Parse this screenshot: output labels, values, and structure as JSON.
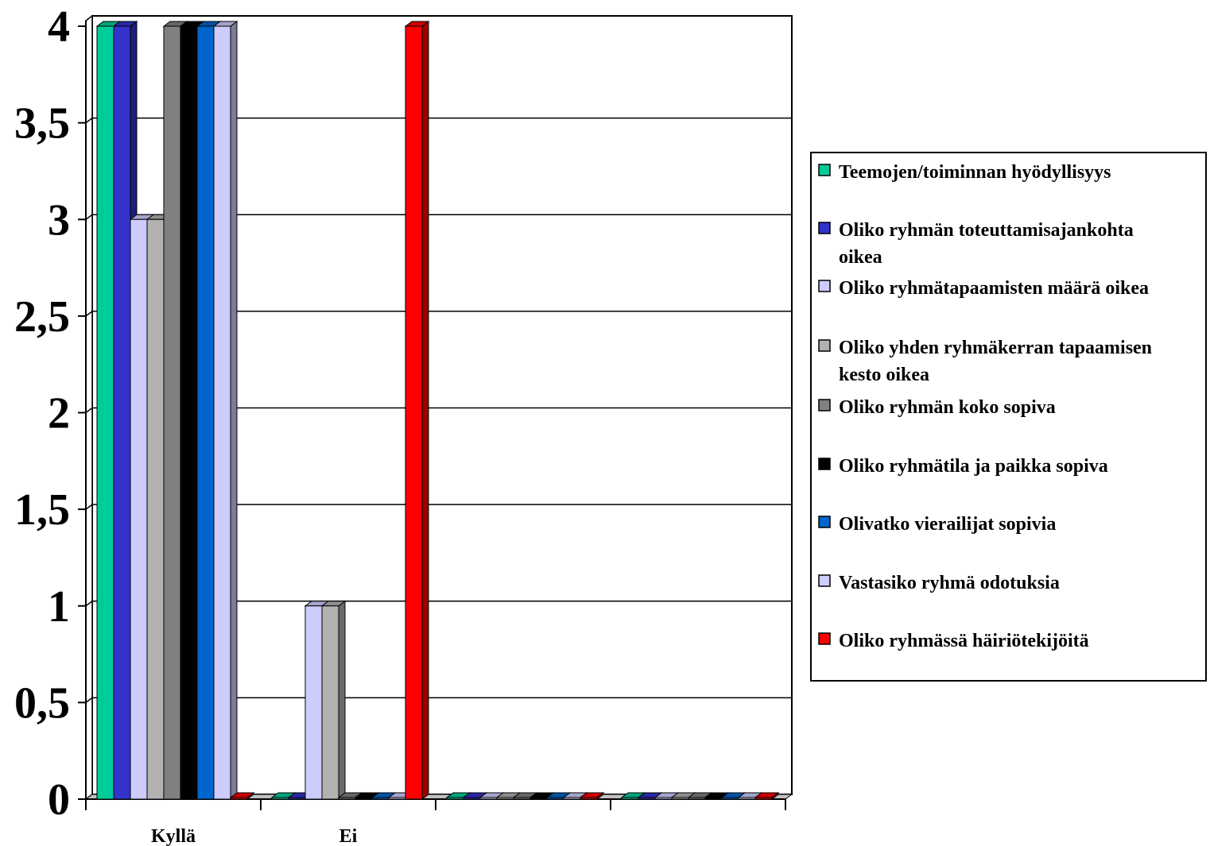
{
  "chart_data": {
    "type": "bar",
    "bar_style": "3d-clustered-column",
    "categories": [
      "Kyllä",
      "Ei",
      "",
      ""
    ],
    "ylim": [
      0,
      4
    ],
    "yticks": [
      "0",
      "0,5",
      "1",
      "1,5",
      "2",
      "2,5",
      "3",
      "3,5",
      "4"
    ],
    "grid": true,
    "legend_position": "right",
    "xlabel": "",
    "ylabel": "",
    "title": "",
    "series": [
      {
        "name": "Teemojen/toiminnan hyödyllisyys",
        "color": "#00cc99",
        "values": [
          4,
          0,
          0,
          0
        ]
      },
      {
        "name": "Oliko ryhmän toteuttamisajankohta oikea",
        "color": "#3333cc",
        "values": [
          4,
          0,
          0,
          0
        ]
      },
      {
        "name": "Oliko ryhmätapaamisten määrä oikea",
        "color": "#ccccff",
        "values": [
          3,
          1,
          0,
          0
        ]
      },
      {
        "name": "Oliko yhden ryhmäkerran tapaamisen kesto oikea",
        "color": "#b2b2b2",
        "values": [
          3,
          1,
          0,
          0
        ]
      },
      {
        "name": "Oliko ryhmän koko sopiva",
        "color": "#808080",
        "values": [
          4,
          0,
          0,
          0
        ]
      },
      {
        "name": "Oliko ryhmätila ja paikka sopiva",
        "color": "#000000",
        "values": [
          4,
          0,
          0,
          0
        ]
      },
      {
        "name": "Olivatko vierailijat sopivia",
        "color": "#0066cc",
        "values": [
          4,
          0,
          0,
          0
        ]
      },
      {
        "name": "Vastasiko ryhmä odotuksia",
        "color": "#ccccff",
        "values": [
          4,
          0,
          0,
          0
        ]
      },
      {
        "name": "Oliko ryhmässä häiriötekijöitä",
        "color": "#ff0000",
        "values": [
          0,
          4,
          0,
          0
        ]
      }
    ],
    "legend_lines": [
      [
        "Teemojen/toiminnan hyödyllisyys"
      ],
      [
        "Oliko ryhmän toteuttamisajankohta",
        "oikea"
      ],
      [
        "Oliko ryhmätapaamisten määrä oikea"
      ],
      [
        "Oliko yhden ryhmäkerran tapaamisen",
        "kesto oikea"
      ],
      [
        "Oliko ryhmän koko sopiva"
      ],
      [
        "Oliko ryhmätila ja paikka sopiva"
      ],
      [
        "Olivatko vierailijat sopivia"
      ],
      [
        "Vastasiko ryhmä odotuksia"
      ],
      [
        "Oliko ryhmässä häiriötekijöitä"
      ]
    ]
  }
}
